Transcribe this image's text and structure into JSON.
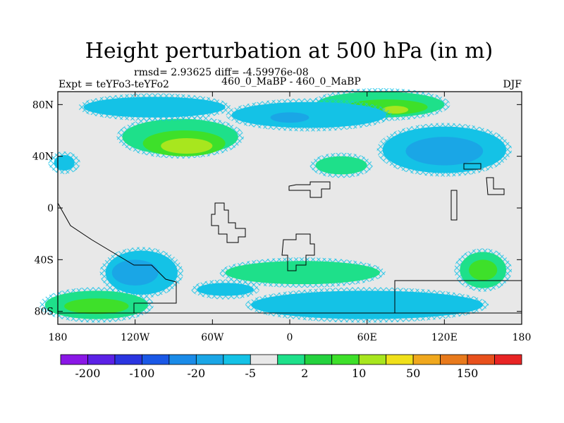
{
  "chart_data": {
    "type": "heatmap",
    "title": "Height perturbation at 500 hPa (in m)",
    "stats_line": "rmsd= 2.93625 diff= -4.59976e-08",
    "left_label": "Expt = teYFo3-teYFo2",
    "center_label": "460_0_MaBP - 460_0_MaBP",
    "right_label": "DJF",
    "x_ticks": [
      {
        "lon": -180,
        "label": "180"
      },
      {
        "lon": -120,
        "label": "120W"
      },
      {
        "lon": -60,
        "label": "60W"
      },
      {
        "lon": 0,
        "label": "0"
      },
      {
        "lon": 60,
        "label": "60E"
      },
      {
        "lon": 120,
        "label": "120E"
      },
      {
        "lon": 180,
        "label": "180"
      }
    ],
    "y_ticks": [
      {
        "lat": 80,
        "label": "80N"
      },
      {
        "lat": 40,
        "label": "40N"
      },
      {
        "lat": 0,
        "label": "0"
      },
      {
        "lat": -40,
        "label": "40S"
      },
      {
        "lat": -80,
        "label": "80S"
      }
    ],
    "lon_range": [
      -180,
      180
    ],
    "lat_range": [
      -90,
      90
    ],
    "colorbar": {
      "colors": [
        "#8a17e6",
        "#5b21e6",
        "#2a35e0",
        "#1a58e6",
        "#1a8be8",
        "#1aa6e6",
        "#14c2e6",
        "#e8e8e8",
        "#1ee08a",
        "#24d23e",
        "#3ee02a",
        "#a8e61e",
        "#f0e01a",
        "#f0a81e",
        "#e87a1c",
        "#e8501c",
        "#e82424"
      ],
      "labels": [
        {
          "after_box": 1,
          "text": "-200"
        },
        {
          "after_box": 3,
          "text": "-100"
        },
        {
          "after_box": 5,
          "text": "-20"
        },
        {
          "after_box": 7,
          "text": "-5"
        },
        {
          "after_box": 9,
          "text": "2"
        },
        {
          "after_box": 11,
          "text": "10"
        },
        {
          "after_box": 13,
          "text": "50"
        },
        {
          "after_box": 15,
          "text": "150"
        }
      ]
    },
    "blobs": [
      {
        "lon": -85,
        "lat": 55,
        "rx": 45,
        "ry": 14,
        "level": 1
      },
      {
        "lon": -82,
        "lat": 50,
        "rx": 32,
        "ry": 10,
        "level": 2
      },
      {
        "lon": -80,
        "lat": 48,
        "rx": 20,
        "ry": 6,
        "level": 3
      },
      {
        "lon": 70,
        "lat": 80,
        "rx": 50,
        "ry": 10,
        "level": 1
      },
      {
        "lon": 75,
        "lat": 78,
        "rx": 32,
        "ry": 6,
        "level": 2
      },
      {
        "lon": 82,
        "lat": 76,
        "rx": 10,
        "ry": 3,
        "level": 3
      },
      {
        "lon": 120,
        "lat": 45,
        "rx": 48,
        "ry": 18,
        "level": -1
      },
      {
        "lon": 120,
        "lat": 44,
        "rx": 30,
        "ry": 11,
        "level": -2
      },
      {
        "lon": -105,
        "lat": 78,
        "rx": 55,
        "ry": 8,
        "level": -1
      },
      {
        "lon": 15,
        "lat": 72,
        "rx": 60,
        "ry": 10,
        "level": -1
      },
      {
        "lon": 0,
        "lat": 70,
        "rx": 15,
        "ry": 4,
        "level": -2
      },
      {
        "lon": -115,
        "lat": -50,
        "rx": 28,
        "ry": 17,
        "level": -1
      },
      {
        "lon": -120,
        "lat": -50,
        "rx": 18,
        "ry": 10,
        "level": -2
      },
      {
        "lon": -150,
        "lat": -75,
        "rx": 40,
        "ry": 11,
        "level": 1
      },
      {
        "lon": -150,
        "lat": -76,
        "rx": 25,
        "ry": 6,
        "level": 2
      },
      {
        "lon": 150,
        "lat": -48,
        "rx": 18,
        "ry": 14,
        "level": 1
      },
      {
        "lon": 150,
        "lat": -48,
        "rx": 11,
        "ry": 8,
        "level": 2
      },
      {
        "lon": 60,
        "lat": -75,
        "rx": 90,
        "ry": 11,
        "level": -1
      },
      {
        "lon": 10,
        "lat": -50,
        "rx": 60,
        "ry": 9,
        "level": 1
      },
      {
        "lon": 40,
        "lat": 33,
        "rx": 20,
        "ry": 7,
        "level": 1
      },
      {
        "lon": -175,
        "lat": 35,
        "rx": 8,
        "ry": 6,
        "level": -1
      },
      {
        "lon": -50,
        "lat": -63,
        "rx": 22,
        "ry": 5,
        "level": -1
      }
    ]
  }
}
